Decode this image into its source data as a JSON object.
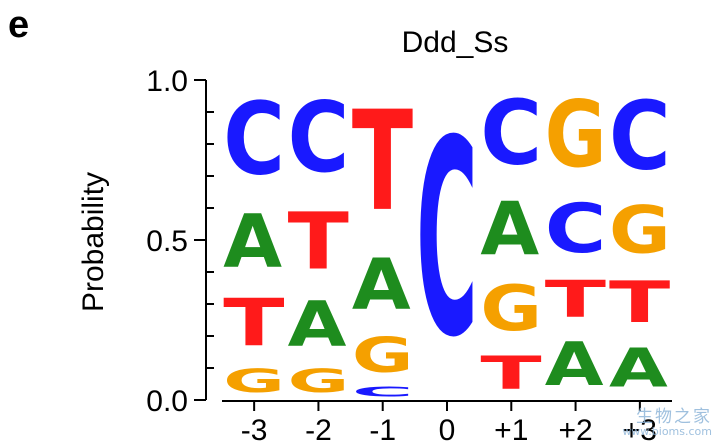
{
  "panel_label": "e",
  "watermark": {
    "name": "生物之家",
    "url": "www.bioms.com"
  },
  "colors": {
    "A": "#1e8c1e",
    "C": "#1919ff",
    "G": "#f5a000",
    "T": "#ff1a1a"
  },
  "chart_data": {
    "type": "sequence-logo",
    "title": "Ddd_Ss",
    "xlabel": "",
    "ylabel": "Probability",
    "ylim": [
      0,
      1
    ],
    "yticks": [
      0.0,
      0.5,
      1.0
    ],
    "ytick_labels": [
      "0.0",
      "0.5",
      "1.0"
    ],
    "positions": [
      {
        "label": "-3",
        "stack": [
          {
            "base": "G",
            "p": 0.12
          },
          {
            "base": "T",
            "p": 0.24
          },
          {
            "base": "A",
            "p": 0.27
          },
          {
            "base": "C",
            "p": 0.37
          }
        ]
      },
      {
        "label": "-2",
        "stack": [
          {
            "base": "G",
            "p": 0.12
          },
          {
            "base": "A",
            "p": 0.23
          },
          {
            "base": "T",
            "p": 0.29
          },
          {
            "base": "C",
            "p": 0.36
          }
        ]
      },
      {
        "label": "-1",
        "stack": [
          {
            "base": "C",
            "p": 0.05
          },
          {
            "base": "G",
            "p": 0.18
          },
          {
            "base": "A",
            "p": 0.26
          },
          {
            "base": "T",
            "p": 0.51
          }
        ]
      },
      {
        "label": "0",
        "stack": [
          {
            "base": "C",
            "p": 1.0
          }
        ]
      },
      {
        "label": "+1",
        "stack": [
          {
            "base": "T",
            "p": 0.17
          },
          {
            "base": "G",
            "p": 0.23
          },
          {
            "base": "A",
            "p": 0.27
          },
          {
            "base": "C",
            "p": 0.33
          }
        ]
      },
      {
        "label": "+2",
        "stack": [
          {
            "base": "A",
            "p": 0.22
          },
          {
            "base": "T",
            "p": 0.19
          },
          {
            "base": "C",
            "p": 0.25
          },
          {
            "base": "G",
            "p": 0.34
          }
        ]
      },
      {
        "label": "+3",
        "stack": [
          {
            "base": "A",
            "p": 0.2
          },
          {
            "base": "T",
            "p": 0.21
          },
          {
            "base": "G",
            "p": 0.24
          },
          {
            "base": "C",
            "p": 0.35
          }
        ]
      }
    ]
  }
}
